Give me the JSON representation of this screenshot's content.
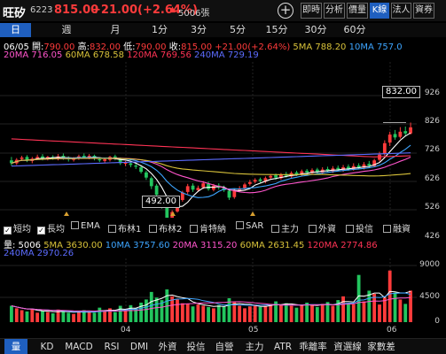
{
  "header": {
    "name": "旺矽",
    "code": "6223",
    "price": "815.00",
    "change": "+21.00(+2.64%)",
    "arrow": "▲",
    "volume_code": "5006張",
    "tabs": [
      "即時",
      "分析",
      "價量",
      "K線",
      "法人",
      "資券"
    ],
    "active_tab": "K線"
  },
  "period_tabs": [
    "日",
    "週",
    "月",
    "1分",
    "3分",
    "5分",
    "15分",
    "30分",
    "60分"
  ],
  "active_period": "日",
  "ohlc": {
    "date": "06/05",
    "open_label": "開:",
    "open": "790.00",
    "high_label": "高:",
    "high": "832.00",
    "low_label": "低:",
    "low": "790.00",
    "close_label": "收:",
    "close": "815.00",
    "change": "+21.00(+2.64%)",
    "ma5": "5MA 788.20",
    "ma10": "10MA 757.0",
    "ma20": "20MA 716.05",
    "ma60": "60MA 678.58",
    "ma120": "120MA 769.56",
    "ma240": "240MA 729.19"
  },
  "price_axis": [
    "926",
    "826",
    "726",
    "626",
    "526",
    "426"
  ],
  "callouts": {
    "high": "832.00",
    "low": "492.00"
  },
  "indicators": [
    {
      "label": "短均",
      "checked": true
    },
    {
      "label": "長均",
      "checked": true
    },
    {
      "label": "EMA",
      "checked": false
    },
    {
      "label": "布林1",
      "checked": false
    },
    {
      "label": "布林2",
      "checked": false
    },
    {
      "label": "肯特納",
      "checked": false
    },
    {
      "label": "SAR",
      "checked": false
    },
    {
      "label": "主力",
      "checked": false
    },
    {
      "label": "外資",
      "checked": false
    },
    {
      "label": "投信",
      "checked": false
    },
    {
      "label": "融資",
      "checked": false
    }
  ],
  "volume_info": {
    "title": "量: 5006",
    "ma5": "5MA 3630.00",
    "ma10": "10MA 3757.60",
    "ma20": "20MA 3115.20",
    "ma60": "60MA 2631.45",
    "ma120": "120MA 2774.86",
    "ma240": "240MA 2970.26"
  },
  "volume_axis": [
    "9000",
    "4500",
    "0"
  ],
  "x_labels": [
    "04",
    "05",
    "06"
  ],
  "bottom_tabs": [
    "量",
    "KD",
    "MACD",
    "RSI",
    "DMI",
    "外資",
    "投信",
    "自營",
    "主力",
    "ATR",
    "乖離率",
    "資選線",
    "家數差"
  ],
  "active_bottom_tab": "量",
  "colors": {
    "up": "#ff3b3b",
    "down": "#22c55e",
    "accent": "#1f5fbf",
    "ma5": "#ffffff",
    "ma10": "#3da5ff",
    "ma20": "#ff55cc",
    "ma60": "#d8c23a",
    "ma120": "#ff3355",
    "ma240": "#5c6cff"
  }
}
